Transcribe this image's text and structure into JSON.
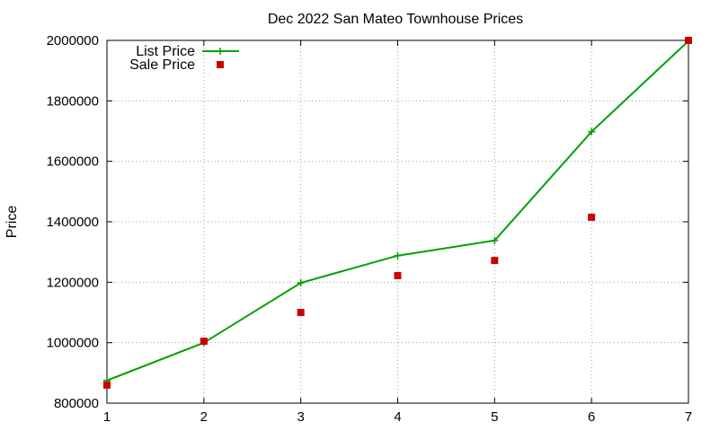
{
  "chart_data": {
    "type": "line",
    "title": "Dec 2022 San Mateo Townhouse Prices",
    "xlabel": "",
    "ylabel": "Price",
    "xlim": [
      1,
      7
    ],
    "ylim": [
      800000,
      2000000
    ],
    "x_ticks": [
      "1",
      "2",
      "3",
      "4",
      "5",
      "6",
      "7"
    ],
    "y_ticks": [
      "800000",
      "1000000",
      "1200000",
      "1400000",
      "1600000",
      "1800000",
      "2000000"
    ],
    "grid": true,
    "legend_position": "top-left",
    "x": [
      1,
      2,
      3,
      4,
      5,
      6,
      7
    ],
    "series": [
      {
        "name": "List Price",
        "style": "lines+points",
        "color": "#00a000",
        "values": [
          875000,
          1000000,
          1198000,
          1288000,
          1338000,
          1698000,
          1998000
        ]
      },
      {
        "name": "Sale Price",
        "style": "points",
        "color": "#cc0000",
        "values": [
          860000,
          1005000,
          1100000,
          1222000,
          1272000,
          1415000,
          2000000
        ]
      }
    ]
  }
}
